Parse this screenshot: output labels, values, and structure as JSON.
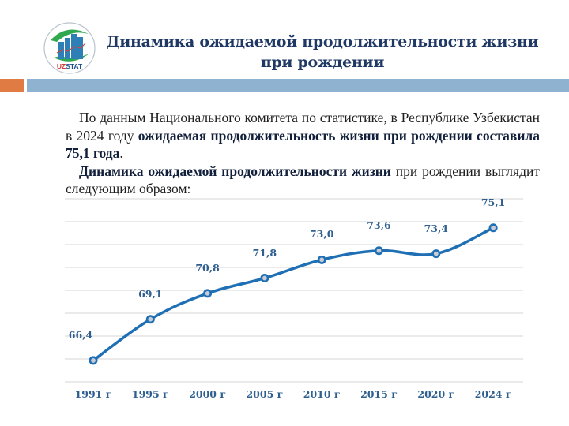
{
  "header": {
    "logo_text": "UZSTAT",
    "title_line1": "Динамика ожидаемой продолжительности жизни",
    "title_line2": "при рождении"
  },
  "body": {
    "p1_normal": "По данным Национального комитета по статистике, в Республике Узбекистан в 2024 году ",
    "p1_bold": "ожидаемая продолжительность жизни при рождении составила 75,1 года",
    "p1_end": ".",
    "p2_bold": "Динамика ожидаемой продолжительности жизни",
    "p2_normal": " при рождении выглядит следующим образом:"
  },
  "colors": {
    "accent_orange": "#e07b43",
    "accent_blue_bar": "#8fb2d1",
    "title": "#1f3864",
    "line": "#1f6fb4",
    "labels": "#2e5f8f",
    "grid": "#d6d6d6"
  },
  "chart_data": {
    "type": "line",
    "title": "Динамика ожидаемой продолжительности жизни при рождении",
    "categories": [
      "1991 г",
      "1995 г",
      "2000 г",
      "2005 г",
      "2010 г",
      "2015 г",
      "2020 г",
      "2024 г"
    ],
    "values": [
      66.4,
      69.1,
      70.8,
      71.8,
      73.0,
      73.6,
      73.4,
      75.1
    ],
    "value_labels": [
      "66,4",
      "69,1",
      "70,8",
      "71,8",
      "73,0",
      "73,6",
      "73,4",
      "75,1"
    ],
    "xlabel": "",
    "ylabel": "",
    "ylim": [
      65,
      77
    ],
    "grid": true,
    "legend": "none",
    "smooth": true,
    "markers": "circle"
  }
}
